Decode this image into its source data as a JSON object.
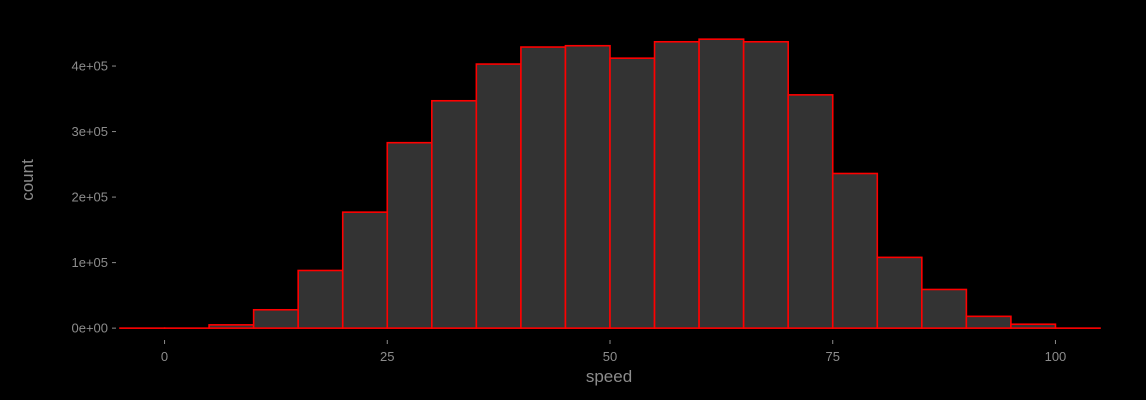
{
  "chart_data": {
    "type": "histogram",
    "title": "",
    "xlabel": "speed",
    "ylabel": "count",
    "bin_width": 5,
    "bins_start": -5,
    "xlim": [
      -5,
      105
    ],
    "ylim": [
      -12000,
      455000
    ],
    "x_ticks": [
      0,
      25,
      50,
      75,
      100
    ],
    "x_tick_labels": [
      "0",
      "25",
      "50",
      "75",
      "100"
    ],
    "y_ticks": [
      0,
      100000,
      200000,
      300000,
      400000
    ],
    "y_tick_labels": [
      "0e+00",
      "1e+05",
      "2e+05",
      "3e+05",
      "4e+05"
    ],
    "values": [
      0,
      0,
      5000,
      28000,
      88000,
      177000,
      283000,
      347000,
      403000,
      429000,
      431000,
      412000,
      437000,
      441000,
      437000,
      356000,
      236000,
      108000,
      59000,
      18000,
      6000,
      0
    ],
    "grid": false,
    "bar_fill": "#333333",
    "bar_outline": "#ff0000",
    "background": "#000000",
    "text_color": "#8c8c8c"
  }
}
